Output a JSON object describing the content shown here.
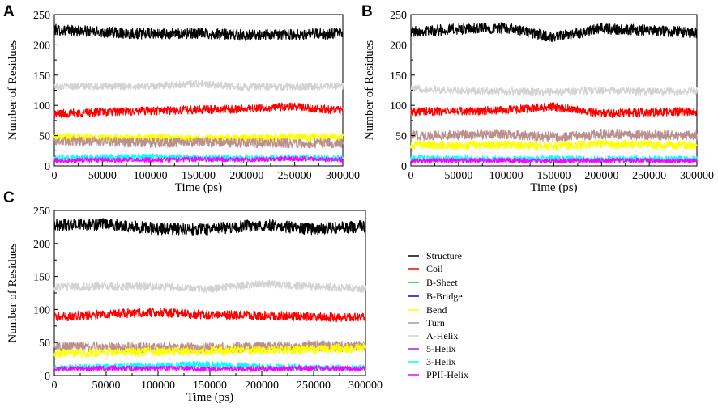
{
  "figure": {
    "legend": [
      {
        "name": "Structure",
        "color": "#000000"
      },
      {
        "name": "Coil",
        "color": "#ff0000"
      },
      {
        "name": "B-Sheet",
        "color": "#00cc00"
      },
      {
        "name": "B-Bridge",
        "color": "#0000ff"
      },
      {
        "name": "Bend",
        "color": "#ffff00"
      },
      {
        "name": "Turn",
        "color": "#bc8f8f"
      },
      {
        "name": "A-Helix",
        "color": "#d3d3d3"
      },
      {
        "name": "5-Helix",
        "color": "#a020f0"
      },
      {
        "name": "3-Helix",
        "color": "#00ffff"
      },
      {
        "name": "PPII-Helix",
        "color": "#ff00ff"
      }
    ],
    "legend_placement": "right of panel C"
  },
  "chart_data": [
    {
      "panel": "A",
      "type": "line",
      "title": "",
      "xlabel": "Time (ps)",
      "ylabel": "Number of Residues",
      "xlim": [
        0,
        300000
      ],
      "ylim": [
        0,
        250
      ],
      "xticks": [
        0,
        50000,
        100000,
        150000,
        200000,
        250000,
        300000
      ],
      "yticks": [
        0,
        50,
        100,
        150,
        200,
        250
      ],
      "series": [
        {
          "name": "Structure",
          "x": [
            0,
            50000,
            100000,
            150000,
            200000,
            250000,
            300000
          ],
          "values": [
            225,
            221,
            218,
            219,
            216,
            217,
            219
          ]
        },
        {
          "name": "A-Helix",
          "x": [
            0,
            50000,
            100000,
            150000,
            200000,
            250000,
            300000
          ],
          "values": [
            132,
            131,
            132,
            136,
            130,
            131,
            132
          ]
        },
        {
          "name": "Coil",
          "x": [
            0,
            50000,
            100000,
            150000,
            200000,
            250000,
            300000
          ],
          "values": [
            86,
            89,
            91,
            93,
            94,
            98,
            91
          ]
        },
        {
          "name": "Bend",
          "x": [
            0,
            50000,
            100000,
            150000,
            200000,
            250000,
            300000
          ],
          "values": [
            48,
            46,
            47,
            45,
            46,
            48,
            47
          ]
        },
        {
          "name": "Turn",
          "x": [
            0,
            50000,
            100000,
            150000,
            200000,
            250000,
            300000
          ],
          "values": [
            41,
            40,
            38,
            39,
            38,
            37,
            38
          ]
        },
        {
          "name": "3-Helix",
          "x": [
            0,
            50000,
            100000,
            150000,
            200000,
            250000,
            300000
          ],
          "values": [
            13,
            14,
            15,
            13,
            12,
            14,
            12
          ]
        },
        {
          "name": "PPII-Helix",
          "x": [
            0,
            50000,
            100000,
            150000,
            200000,
            250000,
            300000
          ],
          "values": [
            9,
            10,
            10,
            11,
            10,
            12,
            10
          ]
        }
      ]
    },
    {
      "panel": "B",
      "type": "line",
      "title": "",
      "xlabel": "Time (ps)",
      "ylabel": "Number of Residues",
      "xlim": [
        0,
        300000
      ],
      "ylim": [
        0,
        250
      ],
      "xticks": [
        0,
        50000,
        100000,
        150000,
        200000,
        250000,
        300000
      ],
      "yticks": [
        0,
        50,
        100,
        150,
        200,
        250
      ],
      "series": [
        {
          "name": "Structure",
          "x": [
            0,
            50000,
            100000,
            150000,
            200000,
            250000,
            300000
          ],
          "values": [
            222,
            226,
            228,
            212,
            227,
            224,
            220
          ]
        },
        {
          "name": "A-Helix",
          "x": [
            0,
            50000,
            100000,
            150000,
            200000,
            250000,
            300000
          ],
          "values": [
            128,
            124,
            123,
            122,
            125,
            123,
            124
          ]
        },
        {
          "name": "Coil",
          "x": [
            0,
            50000,
            100000,
            150000,
            200000,
            250000,
            300000
          ],
          "values": [
            90,
            90,
            92,
            98,
            86,
            89,
            90
          ]
        },
        {
          "name": "Turn",
          "x": [
            0,
            50000,
            100000,
            150000,
            200000,
            250000,
            300000
          ],
          "values": [
            50,
            51,
            52,
            48,
            52,
            51,
            50
          ]
        },
        {
          "name": "Bend",
          "x": [
            0,
            50000,
            100000,
            150000,
            200000,
            250000,
            300000
          ],
          "values": [
            35,
            34,
            35,
            33,
            36,
            35,
            34
          ]
        },
        {
          "name": "3-Helix",
          "x": [
            0,
            50000,
            100000,
            150000,
            200000,
            250000,
            300000
          ],
          "values": [
            12,
            12,
            11,
            12,
            11,
            12,
            11
          ]
        },
        {
          "name": "PPII-Helix",
          "x": [
            0,
            50000,
            100000,
            150000,
            200000,
            250000,
            300000
          ],
          "values": [
            8,
            9,
            9,
            8,
            9,
            9,
            8
          ]
        }
      ]
    },
    {
      "panel": "C",
      "type": "line",
      "title": "",
      "xlabel": "Time (ps)",
      "ylabel": "Number of Residues",
      "xlim": [
        0,
        300000
      ],
      "ylim": [
        0,
        250
      ],
      "xticks": [
        0,
        50000,
        100000,
        150000,
        200000,
        250000,
        300000
      ],
      "yticks": [
        0,
        50,
        100,
        150,
        200,
        250
      ],
      "series": [
        {
          "name": "Structure",
          "x": [
            0,
            50000,
            100000,
            150000,
            200000,
            250000,
            300000
          ],
          "values": [
            228,
            229,
            222,
            222,
            228,
            222,
            226
          ]
        },
        {
          "name": "A-Helix",
          "x": [
            0,
            50000,
            100000,
            150000,
            200000,
            250000,
            300000
          ],
          "values": [
            134,
            135,
            135,
            131,
            139,
            135,
            131
          ]
        },
        {
          "name": "Coil",
          "x": [
            0,
            50000,
            100000,
            150000,
            200000,
            250000,
            300000
          ],
          "values": [
            88,
            93,
            96,
            92,
            91,
            89,
            87
          ]
        },
        {
          "name": "Turn",
          "x": [
            0,
            50000,
            100000,
            150000,
            200000,
            250000,
            300000
          ],
          "values": [
            44,
            43,
            42,
            42,
            43,
            45,
            44
          ]
        },
        {
          "name": "Bend",
          "x": [
            0,
            50000,
            100000,
            150000,
            200000,
            250000,
            300000
          ],
          "values": [
            34,
            35,
            36,
            37,
            38,
            40,
            42
          ]
        },
        {
          "name": "3-Helix",
          "x": [
            0,
            50000,
            100000,
            150000,
            200000,
            250000,
            300000
          ],
          "values": [
            11,
            13,
            15,
            17,
            13,
            12,
            11
          ]
        },
        {
          "name": "PPII-Helix",
          "x": [
            0,
            50000,
            100000,
            150000,
            200000,
            250000,
            300000
          ],
          "values": [
            10,
            11,
            11,
            10,
            10,
            11,
            10
          ]
        }
      ]
    }
  ]
}
